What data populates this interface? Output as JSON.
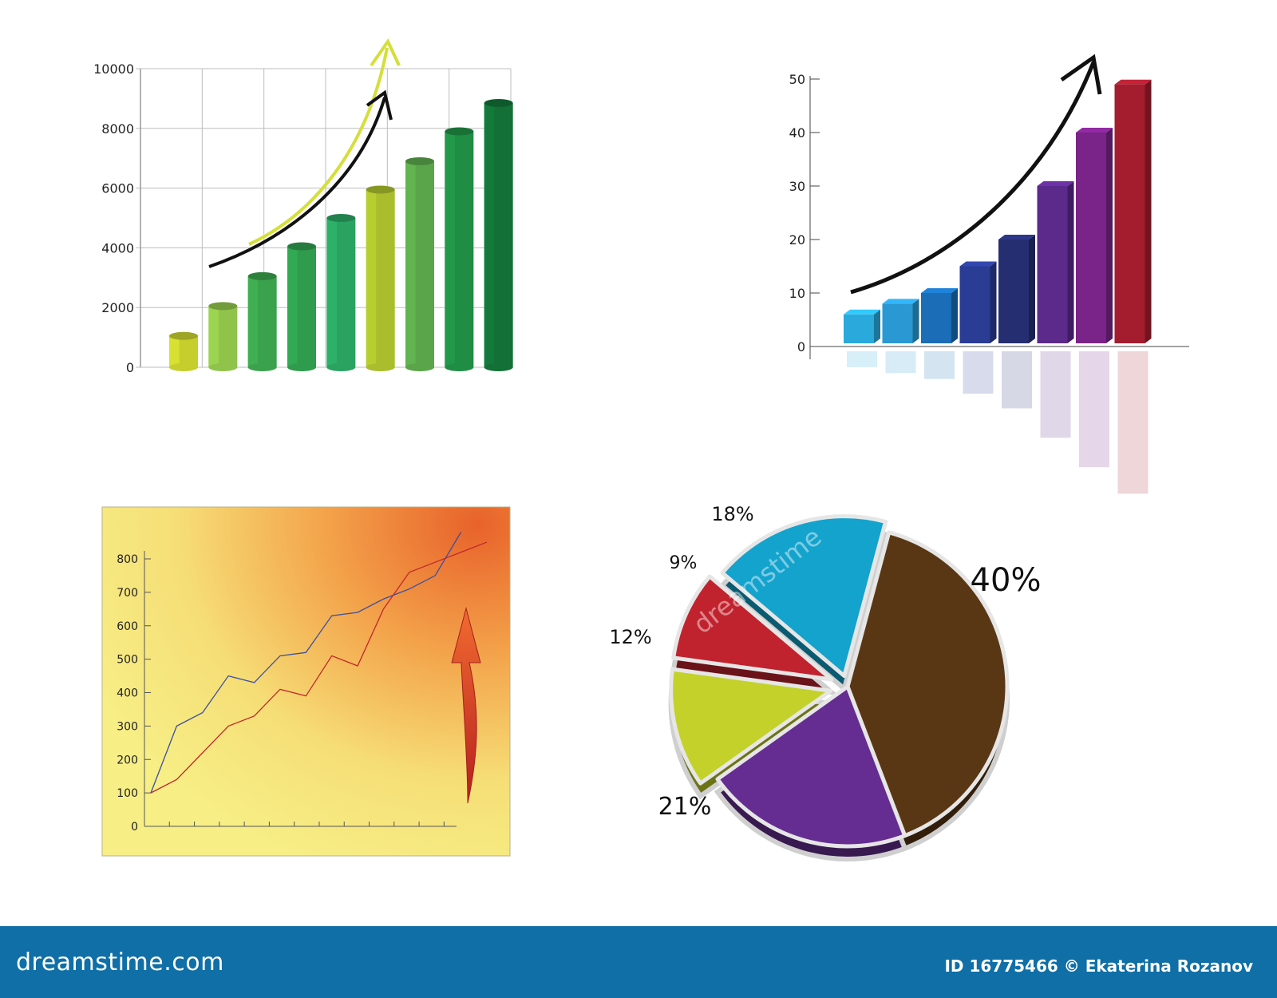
{
  "chart_data": [
    {
      "type": "bar",
      "title": "",
      "xlabel": "",
      "ylabel": "",
      "yticks": [
        "0",
        "2000",
        "4000",
        "6000",
        "8000",
        "10000"
      ],
      "ylim": [
        0,
        10000
      ],
      "values": [
        1050,
        2050,
        3050,
        4050,
        5000,
        5950,
        6900,
        7900,
        8850
      ],
      "colors": [
        "#c6ce2d",
        "#8fc34a",
        "#3aa14c",
        "#2f9b4d",
        "#2aa260",
        "#a9bd2d",
        "#5aa54a",
        "#1f8d44",
        "#137037"
      ],
      "grid": true,
      "annotations": [
        "yellow-trend-arrow",
        "black-trend-arrow"
      ]
    },
    {
      "type": "bar",
      "title": "",
      "xlabel": "",
      "ylabel": "",
      "yticks": [
        "0",
        "10",
        "20",
        "30",
        "40",
        "50"
      ],
      "ylim": [
        0,
        50
      ],
      "values": [
        6,
        8,
        10,
        15,
        20,
        30,
        40,
        49
      ],
      "colors": [
        "#29a9dc",
        "#2a98d2",
        "#1a6db6",
        "#2a3c93",
        "#262e72",
        "#5b2a8b",
        "#7a2388",
        "#a31d2e"
      ],
      "grid": false,
      "annotations": [
        "black-trend-arrow",
        "reflection"
      ]
    },
    {
      "type": "line",
      "title": "",
      "xlabel": "",
      "ylabel": "",
      "yticks": [
        "0",
        "100",
        "200",
        "300",
        "400",
        "500",
        "600",
        "700",
        "800"
      ],
      "ylim": [
        0,
        800
      ],
      "x": [
        0,
        1,
        2,
        3,
        4,
        5,
        6,
        7,
        8,
        9,
        10,
        11,
        12,
        13
      ],
      "series": [
        {
          "values": [
            100,
            300,
            340,
            450,
            430,
            510,
            520,
            630,
            640,
            680,
            710,
            750,
            880,
            null
          ],
          "color": "#3a4fa0"
        },
        {
          "values": [
            100,
            140,
            220,
            300,
            330,
            410,
            390,
            510,
            480,
            650,
            760,
            790,
            820,
            850
          ],
          "color": "#c0282d"
        }
      ],
      "grid": false,
      "annotations": [
        "red-up-arrow"
      ]
    },
    {
      "type": "pie",
      "title": "",
      "labels": [
        "40",
        "21",
        "12",
        "9",
        "18"
      ],
      "values": [
        40,
        21,
        12,
        9,
        18
      ],
      "colors": [
        "#5a3714",
        "#652d92",
        "#c4d12a",
        "#c1232e",
        "#13a3cd"
      ],
      "label_suffix": "%",
      "exploded": true
    }
  ],
  "watermark": {
    "brand_center": "dreamstime",
    "footer_site": "dreamstime.com",
    "footer_credit": "ID 16775466 © Ekaterina Rozanov"
  }
}
